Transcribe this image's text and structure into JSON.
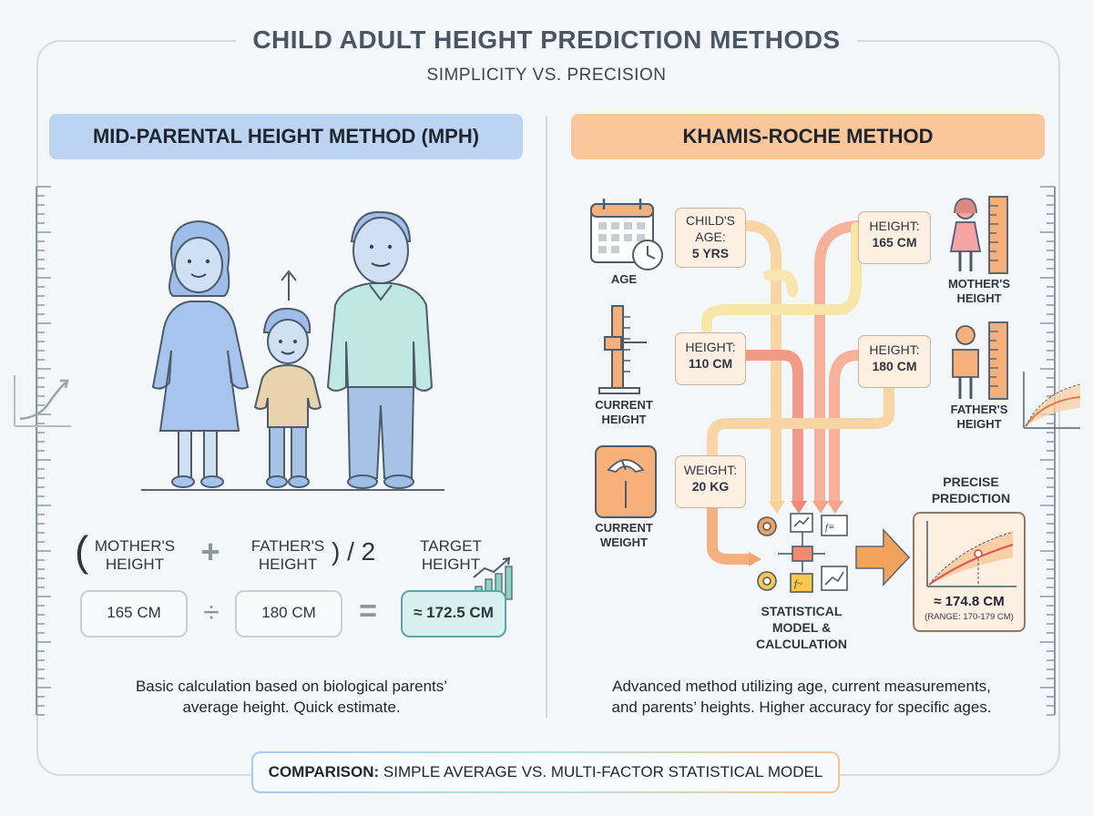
{
  "header": {
    "title": "CHILD ADULT HEIGHT PREDICTION METHODS",
    "subtitle": "SIMPLICITY VS. PRECISION"
  },
  "mph": {
    "heading": "MID-PARENTAL HEIGHT METHOD (MPH)",
    "formula": {
      "open_paren": "(",
      "mother_label_1": "MOTHER'S",
      "mother_label_2": "HEIGHT",
      "plus": "+",
      "father_label_1": "FATHER'S",
      "father_label_2": "HEIGHT",
      "close_div": ") / 2",
      "target_label_1": "TARGET",
      "target_label_2": "HEIGHT"
    },
    "mother_value": "165 CM",
    "divide": "÷",
    "father_value": "180 CM",
    "equals": "=",
    "result_value": "≈ 172.5 CM",
    "description_1": "Basic calculation based on biological parents’",
    "description_2": "average height. Quick estimate."
  },
  "kr": {
    "heading": "KHAMIS-ROCHE METHOD",
    "age_icon_label": "AGE",
    "height_icon_label_1": "CURRENT",
    "height_icon_label_2": "HEIGHT",
    "weight_icon_label_1": "CURRENT",
    "weight_icon_label_2": "WEIGHT",
    "child_age_1": "CHILD'S",
    "child_age_2": "AGE:",
    "child_age_3": "5 YRS",
    "height_card_1": "HEIGHT:",
    "height_card_2": "110 CM",
    "weight_card_1": "WEIGHT:",
    "weight_card_2": "20 KG",
    "mother_card_1": "HEIGHT:",
    "mother_card_2": "165 CM",
    "father_card_1": "HEIGHT:",
    "father_card_2": "180 CM",
    "mother_label_1": "MOTHER'S",
    "mother_label_2": "HEIGHT",
    "father_label_1": "FATHER'S",
    "father_label_2": "HEIGHT",
    "model_label_1": "STATISTICAL",
    "model_label_2": "MODEL &",
    "model_label_3": "CALCULATION",
    "precise_label_1": "PRECISE",
    "precise_label_2": "PREDICTION",
    "result_value": "≈ 174.8 CM",
    "result_range": "(RANGE: 170-179 CM)",
    "description_1": "Advanced method utilizing age, current measurements,",
    "description_2": "and parents’ heights. Higher accuracy for specific ages."
  },
  "footer": {
    "bold": "COMPARISON:",
    "text": " SIMPLE AVERAGE VS. MULTI-FACTOR STATISTICAL MODEL"
  },
  "colors": {
    "mph_accent": "#bcd3f1",
    "kr_accent": "#f9c799",
    "result_teal": "#5fa4a8",
    "arrow_orange": "#f2a25d"
  }
}
